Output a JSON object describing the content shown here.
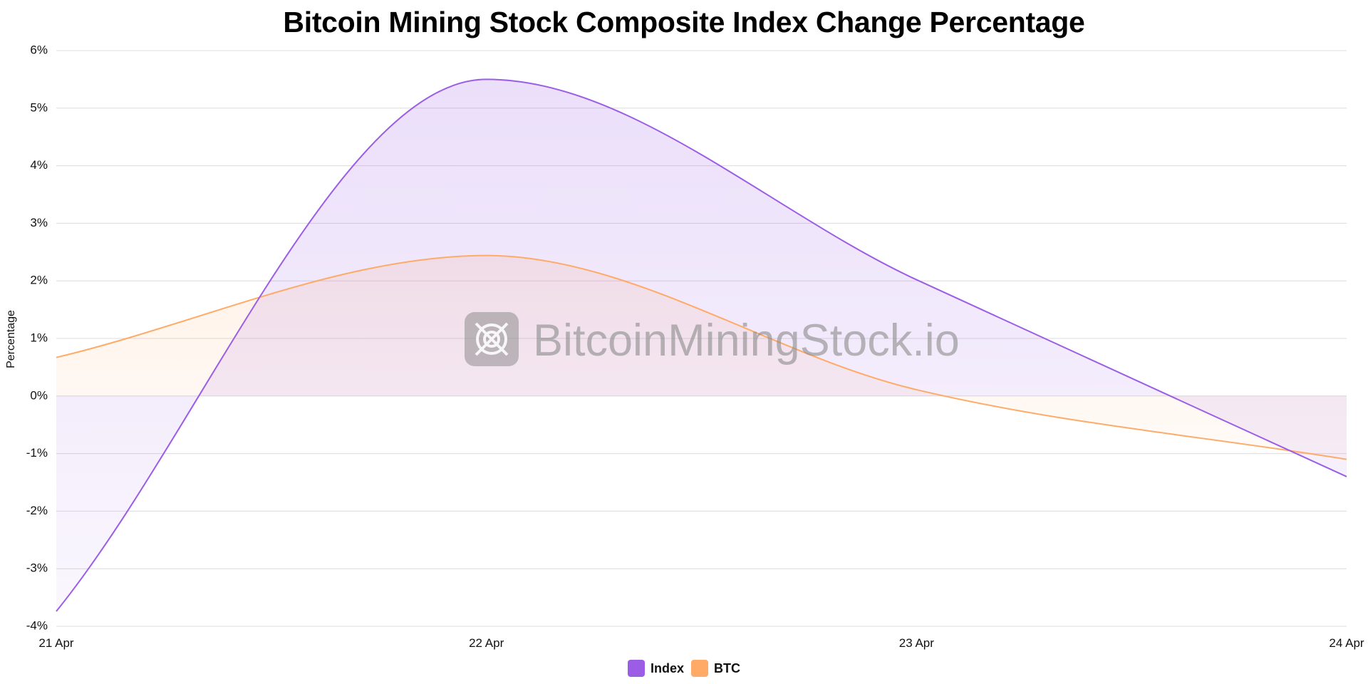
{
  "chart_data": {
    "type": "area",
    "title": "Bitcoin Mining Stock Composite Index Change Percentage",
    "xlabel": "",
    "ylabel": "Percentage",
    "categories": [
      "21 Apr",
      "22 Apr",
      "23 Apr",
      "24 Apr"
    ],
    "ylim": [
      -4,
      6
    ],
    "yticks": [
      6,
      5,
      4,
      3,
      2,
      1,
      0,
      -1,
      -2,
      -3,
      -4
    ],
    "ytick_labels": [
      "6%",
      "5%",
      "4%",
      "3%",
      "2%",
      "1%",
      "0%",
      "-1%",
      "-2%",
      "-3%",
      "-4%"
    ],
    "grid": true,
    "legend_position": "bottom-center",
    "series": [
      {
        "name": "Index",
        "color": "#9b5de5",
        "values": [
          -3.74,
          5.5,
          2.02,
          -1.4
        ]
      },
      {
        "name": "BTC",
        "color": "#ffaa66",
        "values": [
          0.67,
          2.44,
          0.11,
          -1.1
        ]
      }
    ],
    "watermark": "BitcoinMiningStock.io"
  }
}
